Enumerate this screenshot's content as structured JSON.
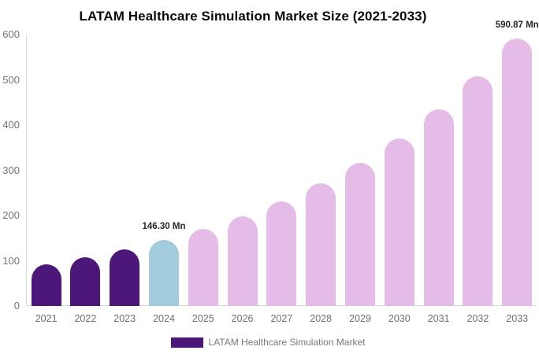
{
  "title": "LATAM Healthcare Simulation Market Size (2021-2033)",
  "legend": {
    "label": "LATAM Healthcare Simulation Market",
    "swatch_color": "#4D177A"
  },
  "colors": {
    "bar_historical": "#4D177A",
    "bar_base_year": "#A3CBDE",
    "bar_forecast": "#E5BCE7",
    "axis_line": "#D9D9D9",
    "tick_text": "#757575",
    "annotation_text": "#262626",
    "title_text": "#0B0B0B"
  },
  "chart_data": {
    "type": "bar",
    "title": "LATAM Healthcare Simulation Market Size (2021-2033)",
    "xlabel": "",
    "ylabel": "",
    "unit": "Mn",
    "categories": [
      "2021",
      "2022",
      "2023",
      "2024",
      "2025",
      "2026",
      "2027",
      "2028",
      "2029",
      "2030",
      "2031",
      "2032",
      "2033"
    ],
    "series": [
      {
        "name": "LATAM Healthcare Simulation Market",
        "values": [
          92,
          107,
          125,
          146.3,
          170,
          198,
          231,
          272,
          317,
          371,
          435,
          507,
          590.87
        ]
      }
    ],
    "bar_colors": [
      "#4D177A",
      "#4D177A",
      "#4D177A",
      "#A3CBDE",
      "#E5BCE7",
      "#E5BCE7",
      "#E5BCE7",
      "#E5BCE7",
      "#E5BCE7",
      "#E5BCE7",
      "#E5BCE7",
      "#E5BCE7",
      "#E5BCE7"
    ],
    "annotations": [
      {
        "category": "2024",
        "text": "146.30 Mn"
      },
      {
        "category": "2033",
        "text": "590.87 Mn"
      }
    ],
    "ylim": [
      0,
      600
    ],
    "yticks": [
      0,
      100,
      200,
      300,
      400,
      500,
      600
    ],
    "grid": false,
    "legend_position": "bottom"
  }
}
